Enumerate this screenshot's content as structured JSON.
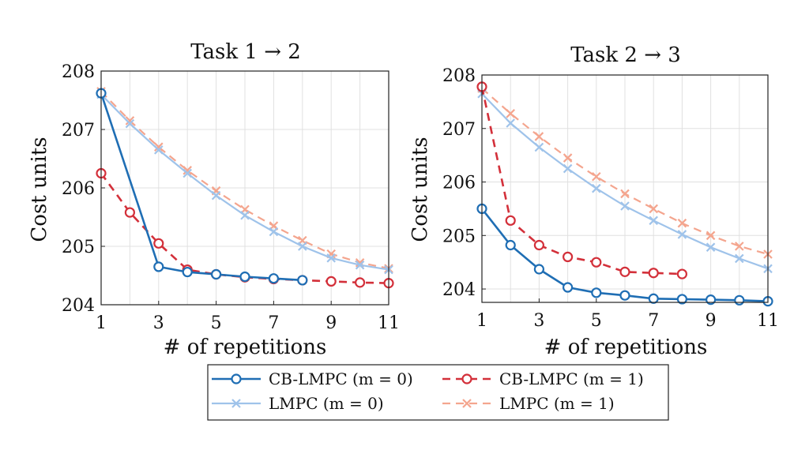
{
  "colors": {
    "cb_m0": "#1f6eb4",
    "lmpc_m0": "#9fc3ea",
    "cb_m1": "#d3303a",
    "lmpc_m1": "#f4a58e",
    "grid": "#e0e0e0",
    "axis": "#222222"
  },
  "legend": {
    "items": [
      {
        "key": "cb_m0",
        "label": "CB-LMPC (m = 0)",
        "marker": "circle",
        "dash": "solid"
      },
      {
        "key": "cb_m1",
        "label": "CB-LMPC (m = 1)",
        "marker": "circle",
        "dash": "dashed"
      },
      {
        "key": "lmpc_m0",
        "label": "LMPC (m = 0)",
        "marker": "x",
        "dash": "solid"
      },
      {
        "key": "lmpc_m1",
        "label": "LMPC (m = 1)",
        "marker": "x",
        "dash": "dashed"
      }
    ],
    "placement": "bottom-center"
  },
  "chart_data": [
    {
      "type": "line",
      "title": "Task 1 → 2",
      "xlabel": "# of repetitions",
      "ylabel": "Cost units",
      "xlim": [
        1,
        11
      ],
      "ylim": [
        204,
        208
      ],
      "xticks": [
        "1",
        "3",
        "5",
        "7",
        "9",
        "11"
      ],
      "yticks": [
        "204",
        "205",
        "206",
        "207",
        "208"
      ],
      "grid": true,
      "series": [
        {
          "key": "lmpc_m1",
          "name": "LMPC (m = 1)",
          "x": [
            1,
            2,
            3,
            4,
            5,
            6,
            7,
            8,
            9,
            10,
            11
          ],
          "y": [
            207.65,
            207.15,
            206.7,
            206.3,
            205.95,
            205.63,
            205.35,
            205.1,
            204.87,
            204.72,
            204.62
          ]
        },
        {
          "key": "lmpc_m0",
          "name": "LMPC (m = 0)",
          "x": [
            1,
            2,
            3,
            4,
            5,
            6,
            7,
            8,
            9,
            10,
            11
          ],
          "y": [
            207.6,
            207.1,
            206.65,
            206.25,
            205.87,
            205.53,
            205.25,
            205.0,
            204.8,
            204.68,
            204.6
          ]
        },
        {
          "key": "cb_m1",
          "name": "CB-LMPC (m = 1)",
          "x": [
            1,
            2,
            3,
            4,
            5,
            6,
            7,
            8,
            9,
            10,
            11
          ],
          "y": [
            206.25,
            205.58,
            205.05,
            204.6,
            204.52,
            204.47,
            204.44,
            204.42,
            204.4,
            204.38,
            204.37
          ]
        },
        {
          "key": "cb_m0",
          "name": "CB-LMPC (m = 0)",
          "x": [
            1,
            3,
            4,
            5,
            6,
            7,
            8
          ],
          "y": [
            207.62,
            204.65,
            204.56,
            204.52,
            204.48,
            204.45,
            204.42
          ]
        }
      ]
    },
    {
      "type": "line",
      "title": "Task 2 → 3",
      "xlabel": "# of repetitions",
      "ylabel": "Cost units",
      "xlim": [
        1,
        11
      ],
      "ylim": [
        203.75,
        208
      ],
      "xticks": [
        "1",
        "3",
        "5",
        "7",
        "9",
        "11"
      ],
      "yticks": [
        "204",
        "205",
        "206",
        "207",
        "208"
      ],
      "grid": true,
      "series": [
        {
          "key": "lmpc_m1",
          "name": "LMPC (m = 1)",
          "x": [
            1,
            2,
            3,
            4,
            5,
            6,
            7,
            8,
            9,
            10,
            11
          ],
          "y": [
            207.75,
            207.28,
            206.85,
            206.45,
            206.1,
            205.78,
            205.5,
            205.23,
            205.0,
            204.8,
            204.65
          ]
        },
        {
          "key": "lmpc_m0",
          "name": "LMPC (m = 0)",
          "x": [
            1,
            2,
            3,
            4,
            5,
            6,
            7,
            8,
            9,
            10,
            11
          ],
          "y": [
            207.65,
            207.1,
            206.65,
            206.25,
            205.88,
            205.55,
            205.28,
            205.02,
            204.78,
            204.57,
            204.38
          ]
        },
        {
          "key": "cb_m1",
          "name": "CB-LMPC (m = 1)",
          "x": [
            1,
            2,
            3,
            4,
            5,
            6,
            7,
            8
          ],
          "y": [
            207.78,
            205.28,
            204.82,
            204.6,
            204.5,
            204.32,
            204.3,
            204.28
          ]
        },
        {
          "key": "cb_m0",
          "name": "CB-LMPC (m = 0)",
          "x": [
            1,
            2,
            3,
            4,
            5,
            6,
            7,
            8,
            9,
            10,
            11
          ],
          "y": [
            205.5,
            204.82,
            204.37,
            204.03,
            203.93,
            203.88,
            203.82,
            203.81,
            203.8,
            203.79,
            203.77
          ]
        }
      ]
    }
  ]
}
